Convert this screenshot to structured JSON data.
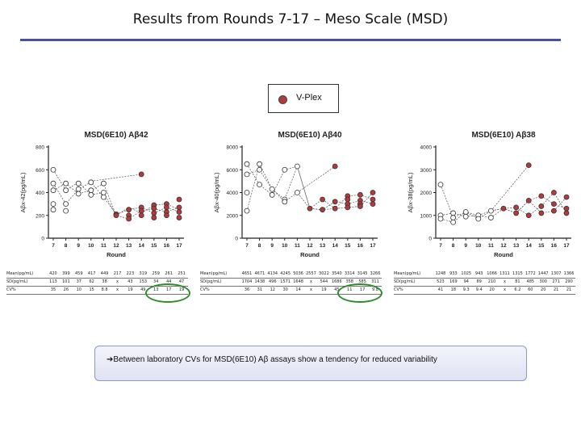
{
  "slide": {
    "title": "Results from Rounds 7-17 – Meso Scale (MSD)",
    "legend_label": "V-Plex",
    "callout": "➔Between laboratory CVs for MSD(6E10) Aβ assays show a tendency for reduced variability"
  },
  "colors": {
    "rule": "#4a4fa0",
    "vplex": "#b23a3a",
    "circle": "#2e8b2e"
  },
  "chart_data": [
    {
      "type": "scatter",
      "title": "MSD(6E10) Aβ42",
      "xlabel": "Round",
      "ylabel": "Aβx-42(pg/mL)",
      "x": [
        7,
        8,
        9,
        10,
        11,
        12,
        13,
        14,
        15,
        16,
        17
      ],
      "ylim": [
        0,
        800
      ],
      "yticks": [
        0,
        200,
        400,
        600,
        800
      ],
      "series": [
        {
          "kind": "open",
          "points": [
            [
              7,
              600
            ],
            [
              7,
              480
            ],
            [
              7,
              420
            ],
            [
              7,
              300
            ],
            [
              7,
              250
            ],
            [
              8,
              480
            ],
            [
              8,
              420
            ],
            [
              8,
              300
            ],
            [
              8,
              240
            ],
            [
              9,
              480
            ],
            [
              9,
              430
            ],
            [
              9,
              390
            ],
            [
              10,
              490
            ],
            [
              10,
              420
            ],
            [
              10,
              380
            ],
            [
              11,
              480
            ],
            [
              11,
              400
            ],
            [
              11,
              360
            ]
          ]
        },
        {
          "kind": "vplex",
          "points": [
            [
              12,
              210
            ],
            [
              12,
              200
            ],
            [
              13,
              250
            ],
            [
              13,
              200
            ],
            [
              13,
              170
            ],
            [
              14,
              560
            ],
            [
              14,
              270
            ],
            [
              14,
              240
            ],
            [
              14,
              200
            ],
            [
              15,
              290
            ],
            [
              15,
              260
            ],
            [
              15,
              220
            ],
            [
              15,
              180
            ],
            [
              16,
              300
            ],
            [
              16,
              270
            ],
            [
              16,
              230
            ],
            [
              16,
              200
            ],
            [
              17,
              340
            ],
            [
              17,
              270
            ],
            [
              17,
              230
            ],
            [
              17,
              180
            ]
          ]
        }
      ],
      "lines": [
        [
          [
            7,
            600
          ],
          [
            8,
            420
          ],
          [
            9,
            490
          ],
          [
            10,
            380
          ],
          [
            11,
            400
          ],
          [
            12,
            200
          ],
          [
            13,
            270
          ],
          [
            14,
            220
          ],
          [
            15,
            290
          ],
          [
            16,
            300
          ],
          [
            17,
            250
          ]
        ],
        [
          [
            7,
            480
          ],
          [
            8,
            300
          ],
          [
            9,
            430
          ],
          [
            10,
            490
          ],
          [
            11,
            360
          ],
          [
            12,
            210
          ],
          [
            13,
            250
          ],
          [
            14,
            270
          ],
          [
            15,
            220
          ],
          [
            16,
            270
          ],
          [
            17,
            230
          ]
        ],
        [
          [
            7,
            420
          ],
          [
            8,
            480
          ],
          [
            9,
            390
          ],
          [
            10,
            420
          ],
          [
            11,
            480
          ],
          [
            12,
            200
          ],
          [
            13,
            170
          ],
          [
            14,
            240
          ],
          [
            15,
            260
          ],
          [
            16,
            230
          ],
          [
            17,
            270
          ]
        ],
        [
          [
            10,
            500
          ],
          [
            14,
            560
          ]
        ]
      ]
    },
    {
      "type": "scatter",
      "title": "MSD(6E10) Aβ40",
      "xlabel": "Round",
      "ylabel": "Aβx-40(pg/mL)",
      "x": [
        7,
        8,
        9,
        10,
        11,
        12,
        13,
        14,
        15,
        16,
        17
      ],
      "ylim": [
        0,
        8000
      ],
      "yticks": [
        0,
        2000,
        4000,
        6000,
        8000
      ],
      "series": [
        {
          "kind": "open",
          "points": [
            [
              7,
              6500
            ],
            [
              7,
              5600
            ],
            [
              7,
              4000
            ],
            [
              7,
              2400
            ],
            [
              8,
              6500
            ],
            [
              8,
              6000
            ],
            [
              8,
              4700
            ],
            [
              9,
              4300
            ],
            [
              9,
              3800
            ],
            [
              10,
              6000
            ],
            [
              10,
              3400
            ],
            [
              10,
              3200
            ],
            [
              11,
              6300
            ],
            [
              11,
              4000
            ]
          ]
        },
        {
          "kind": "vplex",
          "points": [
            [
              12,
              2600
            ],
            [
              13,
              3400
            ],
            [
              13,
              2500
            ],
            [
              14,
              6300
            ],
            [
              14,
              3200
            ],
            [
              14,
              2600
            ],
            [
              15,
              3700
            ],
            [
              15,
              3400
            ],
            [
              15,
              3000
            ],
            [
              15,
              2700
            ],
            [
              16,
              3800
            ],
            [
              16,
              3300
            ],
            [
              16,
              3000
            ],
            [
              16,
              2800
            ],
            [
              17,
              4000
            ],
            [
              17,
              3400
            ],
            [
              17,
              3000
            ]
          ]
        }
      ],
      "lines": [
        [
          [
            7,
            6500
          ],
          [
            8,
            4700
          ],
          [
            9,
            3800
          ],
          [
            10,
            6000
          ],
          [
            11,
            6300
          ],
          [
            12,
            2600
          ],
          [
            13,
            3400
          ],
          [
            14,
            2600
          ],
          [
            15,
            3700
          ],
          [
            16,
            3800
          ],
          [
            17,
            3400
          ]
        ],
        [
          [
            7,
            5600
          ],
          [
            8,
            6000
          ],
          [
            9,
            4300
          ],
          [
            10,
            3200
          ],
          [
            11,
            4000
          ],
          [
            12,
            2600
          ],
          [
            13,
            2500
          ],
          [
            14,
            3200
          ],
          [
            15,
            3000
          ],
          [
            16,
            3300
          ],
          [
            17,
            3000
          ]
        ],
        [
          [
            7,
            2400
          ],
          [
            8,
            6500
          ],
          [
            9,
            4300
          ],
          [
            10,
            3400
          ],
          [
            11,
            6300
          ],
          [
            12,
            2600
          ],
          [
            13,
            2500
          ],
          [
            14,
            2600
          ],
          [
            15,
            2700
          ],
          [
            16,
            2800
          ],
          [
            17,
            4000
          ]
        ],
        [
          [
            11,
            4000
          ],
          [
            14,
            6300
          ]
        ]
      ]
    },
    {
      "type": "scatter",
      "title": "MSD(6E10) Aβ38",
      "xlabel": "Round",
      "ylabel": "Aβx-38(pg/mL)",
      "x": [
        7,
        8,
        9,
        10,
        11,
        12,
        13,
        14,
        15,
        16,
        17
      ],
      "ylim": [
        0,
        4000
      ],
      "yticks": [
        0,
        1000,
        2000,
        3000,
        4000
      ],
      "series": [
        {
          "kind": "open",
          "points": [
            [
              7,
              2350
            ],
            [
              7,
              1000
            ],
            [
              7,
              850
            ],
            [
              8,
              1100
            ],
            [
              8,
              900
            ],
            [
              8,
              700
            ],
            [
              9,
              1150
            ],
            [
              9,
              950
            ],
            [
              10,
              1000
            ],
            [
              10,
              850
            ],
            [
              11,
              1200
            ],
            [
              11,
              900
            ]
          ]
        },
        {
          "kind": "vplex",
          "points": [
            [
              12,
              1300
            ],
            [
              13,
              1350
            ],
            [
              13,
              1100
            ],
            [
              14,
              3200
            ],
            [
              14,
              1650
            ],
            [
              14,
              1000
            ],
            [
              15,
              1850
            ],
            [
              15,
              1400
            ],
            [
              15,
              1100
            ],
            [
              16,
              2000
            ],
            [
              16,
              1500
            ],
            [
              16,
              1200
            ],
            [
              17,
              1800
            ],
            [
              17,
              1300
            ],
            [
              17,
              1100
            ]
          ]
        }
      ],
      "lines": [
        [
          [
            7,
            2350
          ],
          [
            8,
            900
          ],
          [
            9,
            1150
          ],
          [
            10,
            850
          ],
          [
            11,
            1200
          ],
          [
            12,
            1300
          ],
          [
            13,
            1100
          ],
          [
            14,
            1650
          ],
          [
            15,
            1850
          ],
          [
            16,
            1500
          ],
          [
            17,
            1300
          ]
        ],
        [
          [
            7,
            1000
          ],
          [
            8,
            1100
          ],
          [
            9,
            950
          ],
          [
            10,
            1000
          ],
          [
            11,
            900
          ],
          [
            12,
            1300
          ],
          [
            13,
            1350
          ],
          [
            14,
            1000
          ],
          [
            15,
            1400
          ],
          [
            16,
            2000
          ],
          [
            17,
            1100
          ]
        ],
        [
          [
            7,
            850
          ],
          [
            8,
            700
          ],
          [
            9,
            1150
          ],
          [
            10,
            1000
          ],
          [
            11,
            1200
          ],
          [
            12,
            1300
          ],
          [
            13,
            1100
          ],
          [
            14,
            1650
          ],
          [
            15,
            1100
          ],
          [
            16,
            1200
          ],
          [
            17,
            1800
          ]
        ],
        [
          [
            11,
            1200
          ],
          [
            14,
            3200
          ]
        ]
      ]
    }
  ],
  "tables": [
    {
      "rows": [
        {
          "label": "Mean(pg/mL)",
          "cells": [
            "420",
            "399",
            "459",
            "417",
            "449",
            "217",
            "223",
            "319",
            "259",
            "261",
            "251"
          ]
        },
        {
          "label": "SD(pg/mL)",
          "cells": [
            "113",
            "101",
            "37",
            "62",
            "38",
            "x",
            "43",
            "153",
            "34",
            "44",
            "47"
          ]
        },
        {
          "label": "CV%",
          "cells": [
            "35",
            "26",
            "10",
            "15",
            "8.8",
            "x",
            "19",
            "49",
            "13",
            "17",
            "19"
          ]
        }
      ]
    },
    {
      "rows": [
        {
          "label": "Mean(pg/mL)",
          "cells": [
            "4651",
            "4671",
            "4134",
            "4245",
            "5036",
            "2557",
            "3022",
            "3540",
            "3314",
            "3145",
            "3266"
          ]
        },
        {
          "label": "SD(pg/mL)",
          "cells": [
            "1704",
            "1438",
            "496",
            "1571",
            "1648",
            "x",
            "544",
            "1686",
            "358",
            "585",
            "311"
          ]
        },
        {
          "label": "CV%",
          "cells": [
            "36",
            "31",
            "12",
            "30",
            "14",
            "x",
            "19",
            "45",
            "11",
            "17",
            "9.8"
          ]
        }
      ]
    },
    {
      "rows": [
        {
          "label": "Mean(pg/mL)",
          "cells": [
            "1248",
            "933",
            "1025",
            "943",
            "1066",
            "1311",
            "1315",
            "1772",
            "1447",
            "1307",
            "1366"
          ]
        },
        {
          "label": "SD(pg/mL)",
          "cells": [
            "523",
            "169",
            "94",
            "89",
            "210",
            "x",
            "81",
            "485",
            "300",
            "271",
            "290"
          ]
        },
        {
          "label": "CV%",
          "cells": [
            "41",
            "18",
            "9.3",
            "9.4",
            "20",
            "x",
            "6.2",
            "60",
            "20",
            "21",
            "21"
          ]
        }
      ]
    }
  ]
}
